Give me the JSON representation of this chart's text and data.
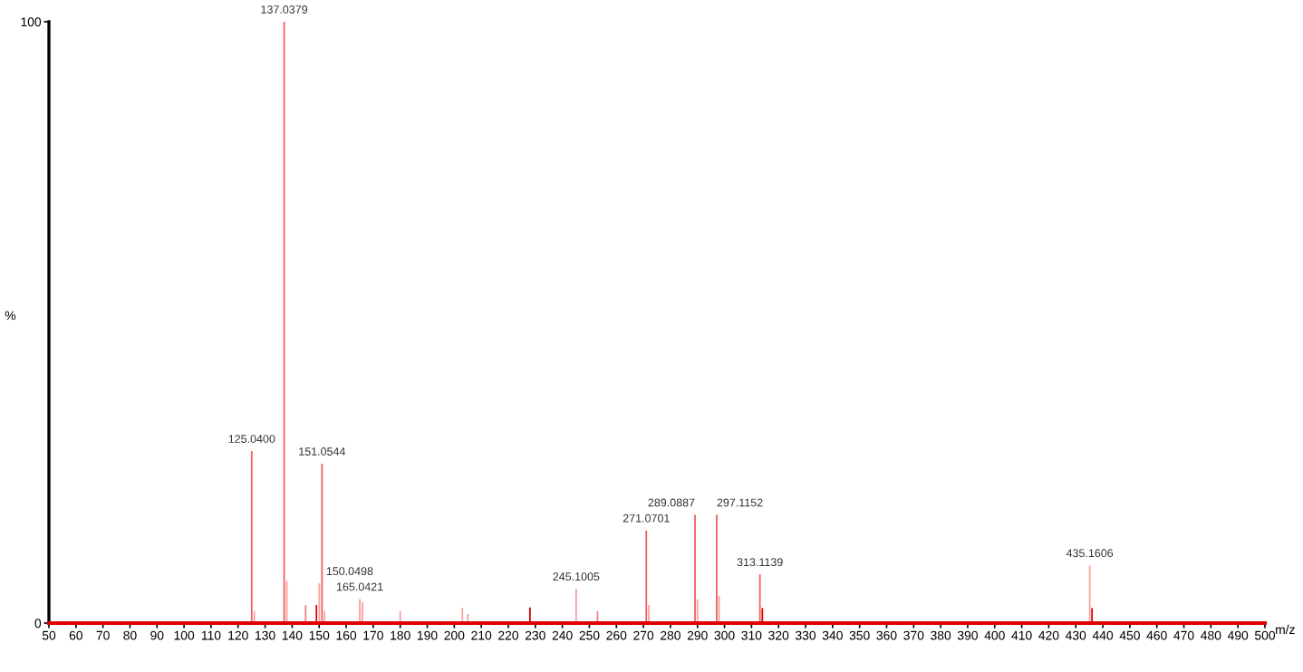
{
  "chart_data": {
    "type": "bar",
    "xlabel": "m/z",
    "ylabel": "%",
    "x": [
      125.04,
      126,
      137.0379,
      138,
      145,
      149,
      150.0498,
      151.0544,
      152,
      165.0421,
      166,
      180,
      203,
      205,
      228,
      245.1005,
      253,
      271.0701,
      272,
      289.0887,
      290,
      297.1152,
      298,
      313.1139,
      314,
      435.1606,
      436
    ],
    "values": [
      28.6,
      2,
      100,
      7,
      3,
      3,
      6.6,
      26.5,
      2,
      4,
      3.5,
      2,
      2.5,
      1.5,
      2.6,
      5.7,
      2,
      15.4,
      3,
      18,
      4,
      18,
      4.5,
      8.1,
      2.5,
      9.6,
      2.5
    ],
    "colors": [
      "#f06060",
      "#f8a0a0",
      "#f06060",
      "#f8a0a0",
      "#f08080",
      "#e00000",
      "#f8a0a0",
      "#f06060",
      "#f8a0a0",
      "#f8a0a0",
      "#f8a0a0",
      "#f8a0a0",
      "#f8a0a0",
      "#f8a0a0",
      "#c00000",
      "#f8a0a0",
      "#f08080",
      "#f06060",
      "#f8a0a0",
      "#f06060",
      "#f8a0a0",
      "#f06060",
      "#f8a0a0",
      "#f06060",
      "#e00000",
      "#f8a0a0",
      "#e00000"
    ],
    "annotations": [
      {
        "text": "125.0400",
        "x": 125.04,
        "y": 28.6
      },
      {
        "text": "137.0379",
        "x": 137.0379,
        "y": 100
      },
      {
        "text": "150.0498",
        "x": 150.0498,
        "y": 6.6
      },
      {
        "text": "151.0544",
        "x": 151.0544,
        "y": 26.5
      },
      {
        "text": "165.0421",
        "x": 165.0421,
        "y": 4
      },
      {
        "text": "245.1005",
        "x": 245.1005,
        "y": 5.7
      },
      {
        "text": "271.0701",
        "x": 271.0701,
        "y": 15.4
      },
      {
        "text": "289.0887",
        "x": 289.0887,
        "y": 18
      },
      {
        "text": "297.1152",
        "x": 297.1152,
        "y": 18
      },
      {
        "text": "313.1139",
        "x": 313.1139,
        "y": 8.1
      },
      {
        "text": "435.1606",
        "x": 435.1606,
        "y": 9.6
      }
    ],
    "xlim": [
      50,
      500
    ],
    "xticks": [
      50,
      60,
      70,
      80,
      90,
      100,
      110,
      120,
      130,
      140,
      150,
      160,
      170,
      180,
      190,
      200,
      210,
      220,
      230,
      240,
      250,
      260,
      270,
      280,
      290,
      300,
      310,
      320,
      330,
      340,
      350,
      360,
      370,
      380,
      390,
      400,
      410,
      420,
      430,
      440,
      450,
      460,
      470,
      480,
      490,
      500
    ],
    "ylim": [
      0,
      100
    ],
    "yticks": [
      0,
      100
    ],
    "grid": false,
    "legend": false
  }
}
